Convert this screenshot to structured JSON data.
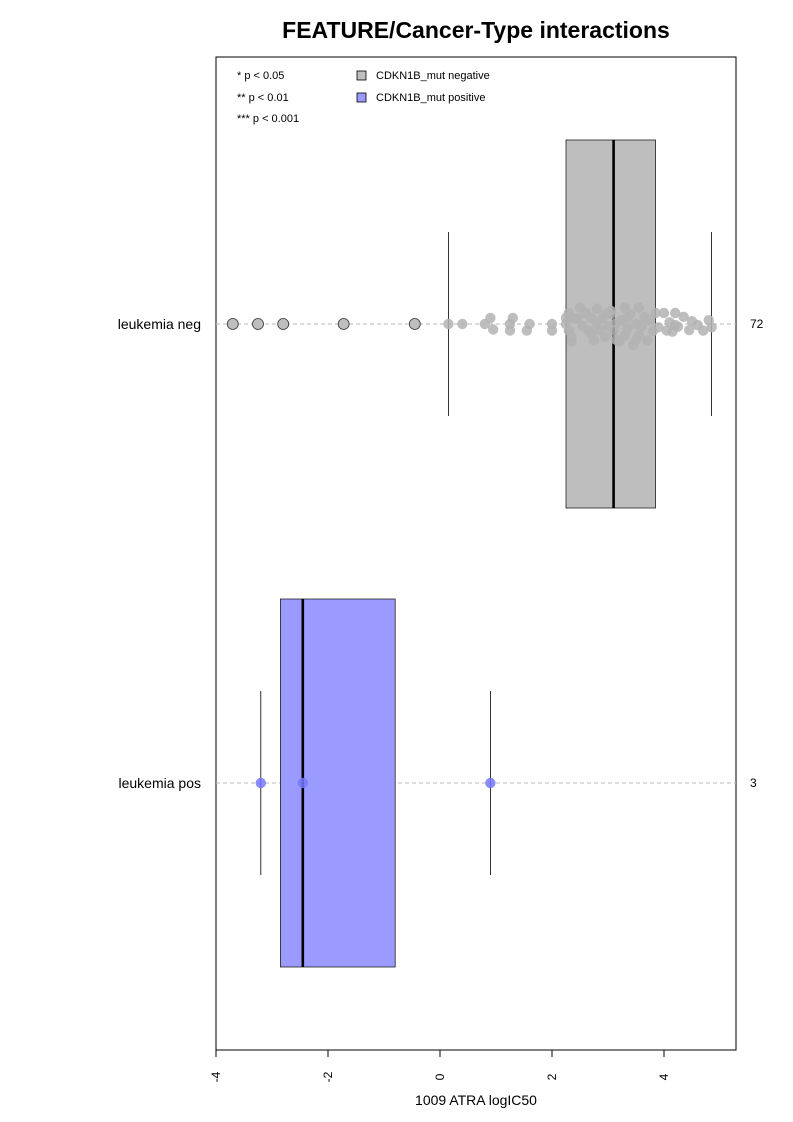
{
  "chart_data": {
    "type": "boxplot",
    "orientation": "horizontal",
    "title": "FEATURE/Cancer-Type interactions",
    "xlabel": "1009 ATRA logIC50",
    "xlim": [
      -4,
      5.2
    ],
    "x_ticks": [
      -4,
      -2,
      0,
      2,
      4
    ],
    "x_tick_labels": [
      "-4",
      "-2",
      "0",
      "2",
      "4"
    ],
    "significance_legend": [
      "* p < 0.05",
      "** p < 0.01",
      "*** p < 0.001"
    ],
    "groups": [
      {
        "name": "leukemia neg",
        "count": "72",
        "legend_label": "CDKN1B_mut negative",
        "color": "#bebebe",
        "point_color": "#b3b3b3",
        "box": {
          "whisker_low": 0.15,
          "q1": 2.25,
          "median": 3.1,
          "q3": 3.85,
          "whisker_high": 4.85
        },
        "outliers": [
          -3.7,
          -3.25,
          -2.8,
          -1.72,
          -0.45
        ],
        "points": [
          0.15,
          0.4,
          0.8,
          0.95,
          0.9,
          1.25,
          1.3,
          1.25,
          1.55,
          1.6,
          2.0,
          2.0,
          2.25,
          2.3,
          2.25,
          2.35,
          2.3,
          2.35,
          2.45,
          2.55,
          2.6,
          2.65,
          2.7,
          2.75,
          2.8,
          2.8,
          2.85,
          2.9,
          2.95,
          2.95,
          3.0,
          3.05,
          3.1,
          3.15,
          3.2,
          3.25,
          3.3,
          3.3,
          3.35,
          3.4,
          3.45,
          3.5,
          3.55,
          3.55,
          3.6,
          3.7,
          3.75,
          3.8,
          3.85,
          3.9,
          4.0,
          4.05,
          4.1,
          4.15,
          4.2,
          4.25,
          4.35,
          4.45,
          4.5,
          4.6,
          4.7,
          4.8,
          4.85,
          3.05,
          2.5,
          3.35,
          3.65,
          2.7,
          4.2,
          3.15,
          3.5,
          2.4
        ],
        "points_jitter": [
          0,
          0,
          0,
          0.5,
          -0.55,
          0.6,
          -0.55,
          0,
          0.6,
          0,
          0.6,
          0,
          0,
          0.6,
          -0.55,
          1.6,
          -1.0,
          1.15,
          -0.5,
          0.2,
          -1.0,
          0.6,
          -0.55,
          1.5,
          0,
          -1.4,
          0.55,
          -0.55,
          1.15,
          -0.9,
          0.2,
          -1.2,
          0.6,
          -0.1,
          1.6,
          -0.35,
          1.05,
          -1.5,
          0.4,
          -0.9,
          1.9,
          0,
          -1.5,
          0.95,
          0.2,
          1.5,
          -0.35,
          0.65,
          -1.0,
          0.3,
          -1.0,
          0.6,
          -0.15,
          0.7,
          -1.0,
          0.25,
          -0.65,
          0.55,
          -0.25,
          0.1,
          0.6,
          -0.35,
          0.3,
          -0.9,
          -1.5,
          -0.6,
          -0.65,
          0.9,
          0.1,
          1.45,
          1.45,
          -0.5
        ]
      },
      {
        "name": "leukemia pos",
        "count": "3",
        "legend_label": "CDKN1B_mut positive",
        "color": "#9a9aff",
        "point_color": "#7777ff",
        "box": {
          "whisker_low": -3.2,
          "q1": -2.85,
          "median": -2.45,
          "q3": -0.8,
          "whisker_high": 0.9
        },
        "outliers": [],
        "points": [
          -3.2,
          -2.45,
          0.9
        ],
        "points_jitter": [
          0,
          0,
          0
        ]
      }
    ],
    "grid": false,
    "legend_position": "top-left"
  }
}
